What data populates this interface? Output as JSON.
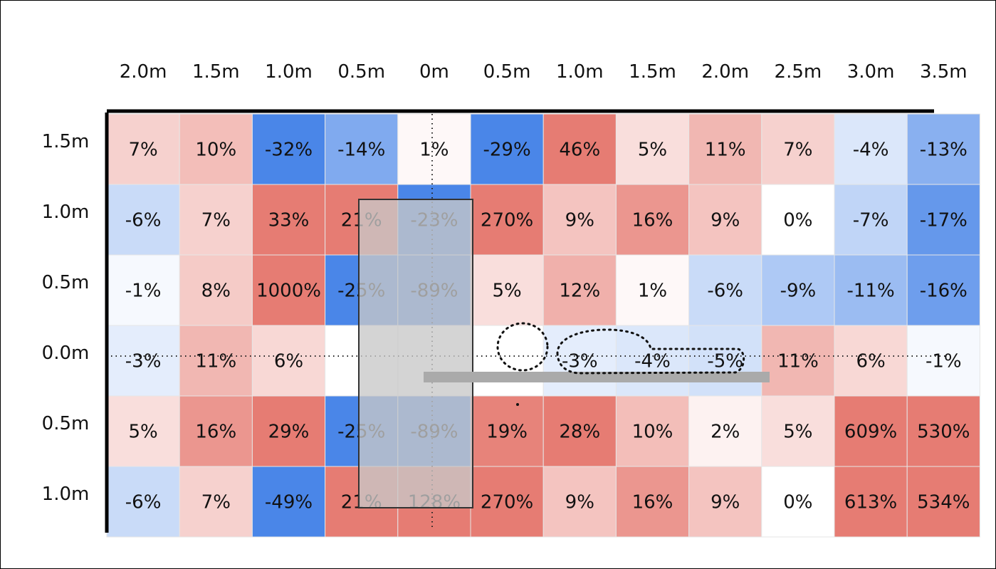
{
  "chart_data": {
    "type": "heatmap",
    "title": "",
    "xlabel": "",
    "ylabel": "",
    "x_tick_labels": [
      "2.0m",
      "1.5m",
      "1.0m",
      "0.5m",
      "0m",
      "0.5m",
      "1.0m",
      "1.5m",
      "2.0m",
      "2.5m",
      "3.0m",
      "3.5m"
    ],
    "y_tick_labels": [
      "1.5m",
      "1.0m",
      "0.5m",
      "0.0m",
      "0.5m",
      "1.0m"
    ],
    "labels": [
      [
        "7%",
        "10%",
        "-32%",
        "-14%",
        "1%",
        "-29%",
        "46%",
        "5%",
        "11%",
        "7%",
        "-4%",
        "-13%"
      ],
      [
        "-6%",
        "7%",
        "33%",
        "21%",
        "-23%",
        "270%",
        "9%",
        "16%",
        "9%",
        "0%",
        "-7%",
        "-17%"
      ],
      [
        "-1%",
        "8%",
        "1000%",
        "-25%",
        "-89%",
        "5%",
        "12%",
        "1%",
        "-6%",
        "-9%",
        "-11%",
        "-16%"
      ],
      [
        "-3%",
        "11%",
        "6%",
        "",
        "",
        "",
        "-3%",
        "-4%",
        "-5%",
        "11%",
        "6%",
        "-1%"
      ],
      [
        "5%",
        "16%",
        "29%",
        "-25%",
        "-89%",
        "19%",
        "28%",
        "10%",
        "2%",
        "5%",
        "609%",
        "530%"
      ],
      [
        "-6%",
        "7%",
        "-49%",
        "21%",
        "128%",
        "270%",
        "9%",
        "16%",
        "9%",
        "0%",
        "613%",
        "534%"
      ]
    ],
    "values": [
      [
        7,
        10,
        -32,
        -14,
        1,
        -29,
        46,
        5,
        11,
        7,
        -4,
        -13
      ],
      [
        -6,
        7,
        33,
        21,
        -23,
        270,
        9,
        16,
        9,
        0,
        -7,
        -17
      ],
      [
        -1,
        8,
        1000,
        -25,
        -89,
        5,
        12,
        1,
        -6,
        -9,
        -11,
        -16
      ],
      [
        -3,
        11,
        6,
        null,
        null,
        null,
        -3,
        -4,
        -5,
        11,
        6,
        -1
      ],
      [
        5,
        16,
        29,
        -25,
        -89,
        19,
        28,
        10,
        2,
        5,
        609,
        530
      ],
      [
        -6,
        7,
        -49,
        21,
        128,
        270,
        9,
        16,
        9,
        0,
        613,
        534
      ]
    ],
    "color_scale": {
      "negative": "#4a86e8",
      "zero": "#ffffff",
      "positive": "#e67c73",
      "saturation": 20
    },
    "grid": true
  }
}
